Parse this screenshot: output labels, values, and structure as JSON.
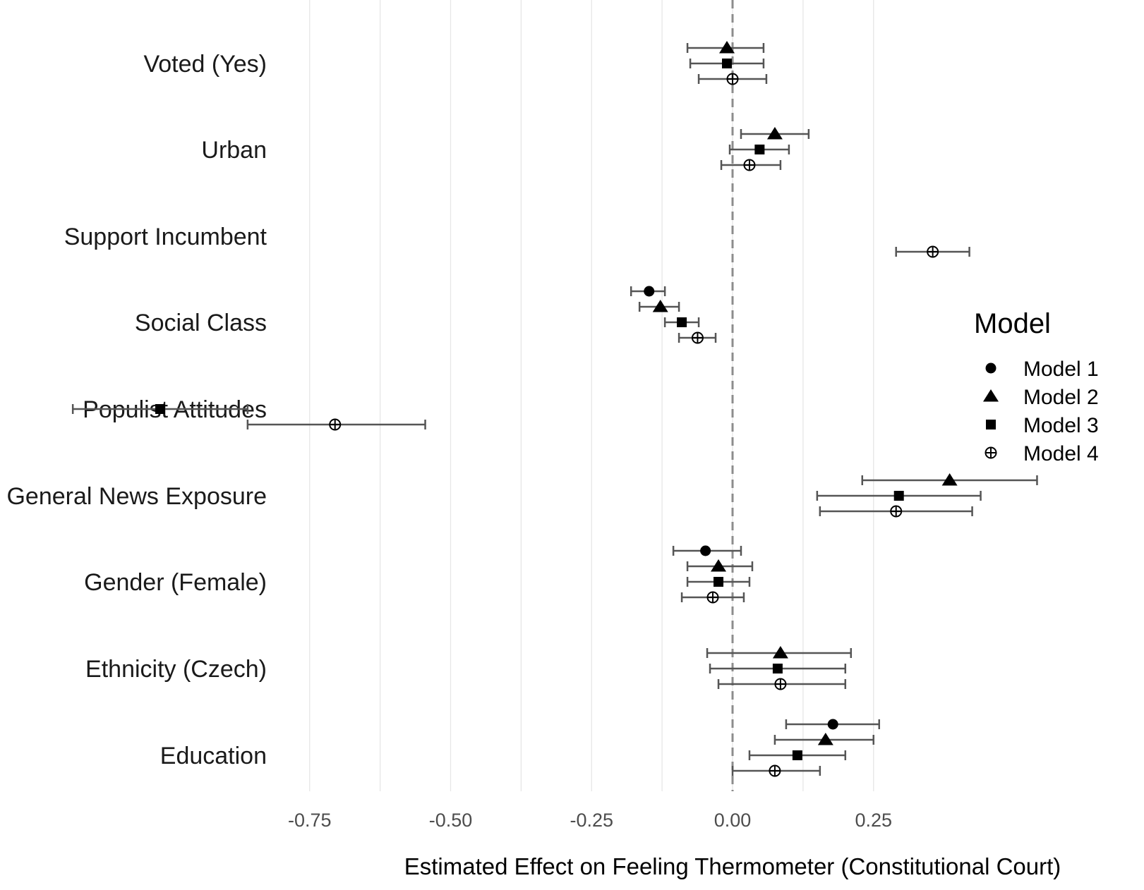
{
  "chart_data": {
    "type": "scatter",
    "subtype": "coefficient-plot",
    "title": "",
    "xlabel": "Estimated Effect on Feeling Thermometer (Constitutional Court)",
    "ylabel": "",
    "xlim": [
      -0.75,
      0.33
    ],
    "x_ticks": [
      -0.75,
      -0.5,
      -0.25,
      0.0,
      0.25
    ],
    "x_tick_labels": [
      "-0.75",
      "-0.50",
      "-0.25",
      "0.00",
      "0.25"
    ],
    "reference_line": 0,
    "grid": "vertical",
    "legend_position": "right",
    "legend_title": "Model",
    "categories": [
      "Voted (Yes)",
      "Urban",
      "Support Incumbent",
      "Social Class",
      "Populist Attitudes",
      "General News Exposure",
      "Gender (Female)",
      "Ethnicity (Czech)",
      "Education"
    ],
    "series": [
      {
        "name": "Model 1",
        "marker": "circle",
        "points": [
          {
            "category": "Social Class",
            "estimate": -0.148,
            "lower": -0.18,
            "upper": -0.12
          },
          {
            "category": "Gender (Female)",
            "estimate": -0.048,
            "lower": -0.105,
            "upper": 0.015
          },
          {
            "category": "Education",
            "estimate": 0.178,
            "lower": 0.095,
            "upper": 0.26
          }
        ]
      },
      {
        "name": "Model 2",
        "marker": "triangle",
        "points": [
          {
            "category": "Voted (Yes)",
            "estimate": -0.01,
            "lower": -0.08,
            "upper": 0.055
          },
          {
            "category": "Urban",
            "estimate": 0.075,
            "lower": 0.015,
            "upper": 0.135
          },
          {
            "category": "Social Class",
            "estimate": -0.128,
            "lower": -0.165,
            "upper": -0.095
          },
          {
            "category": "General News Exposure",
            "estimate": 0.385,
            "lower": 0.23,
            "upper": 0.54
          },
          {
            "category": "Gender (Female)",
            "estimate": -0.025,
            "lower": -0.08,
            "upper": 0.035
          },
          {
            "category": "Ethnicity (Czech)",
            "estimate": 0.085,
            "lower": -0.045,
            "upper": 0.21
          },
          {
            "category": "Education",
            "estimate": 0.165,
            "lower": 0.075,
            "upper": 0.25
          }
        ]
      },
      {
        "name": "Model 3",
        "marker": "square",
        "points": [
          {
            "category": "Voted (Yes)",
            "estimate": -0.01,
            "lower": -0.075,
            "upper": 0.055
          },
          {
            "category": "Urban",
            "estimate": 0.048,
            "lower": -0.005,
            "upper": 0.1
          },
          {
            "category": "Social Class",
            "estimate": -0.09,
            "lower": -0.12,
            "upper": -0.06
          },
          {
            "category": "Populist Attitudes",
            "estimate": -1.015,
            "lower": -1.17,
            "upper": -0.86
          },
          {
            "category": "General News Exposure",
            "estimate": 0.295,
            "lower": 0.15,
            "upper": 0.44
          },
          {
            "category": "Gender (Female)",
            "estimate": -0.025,
            "lower": -0.08,
            "upper": 0.03
          },
          {
            "category": "Ethnicity (Czech)",
            "estimate": 0.08,
            "lower": -0.04,
            "upper": 0.2
          },
          {
            "category": "Education",
            "estimate": 0.115,
            "lower": 0.03,
            "upper": 0.2
          }
        ]
      },
      {
        "name": "Model 4",
        "marker": "circle-plus",
        "points": [
          {
            "category": "Voted (Yes)",
            "estimate": 0.0,
            "lower": -0.06,
            "upper": 0.06
          },
          {
            "category": "Urban",
            "estimate": 0.03,
            "lower": -0.02,
            "upper": 0.085
          },
          {
            "category": "Support Incumbent",
            "estimate": 0.355,
            "lower": 0.29,
            "upper": 0.42
          },
          {
            "category": "Social Class",
            "estimate": -0.062,
            "lower": -0.095,
            "upper": -0.03
          },
          {
            "category": "Populist Attitudes",
            "estimate": -0.705,
            "lower": -0.86,
            "upper": -0.545
          },
          {
            "category": "General News Exposure",
            "estimate": 0.29,
            "lower": 0.155,
            "upper": 0.425
          },
          {
            "category": "Gender (Female)",
            "estimate": -0.035,
            "lower": -0.09,
            "upper": 0.02
          },
          {
            "category": "Ethnicity (Czech)",
            "estimate": 0.085,
            "lower": -0.025,
            "upper": 0.2
          },
          {
            "category": "Education",
            "estimate": 0.075,
            "lower": 0.0,
            "upper": 0.155
          }
        ]
      }
    ]
  },
  "style": {
    "marker_color": "#000000",
    "errorbar_color": "#555555",
    "grid_color": "#e6e6e6",
    "reference_line_color": "#8c8c8c"
  }
}
